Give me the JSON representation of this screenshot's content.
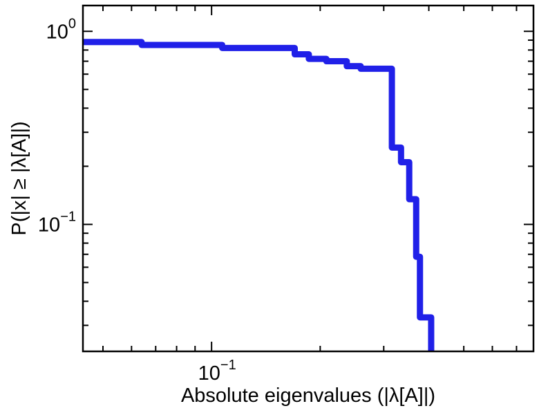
{
  "chart_data": {
    "type": "line",
    "subtype": "staircase-ccdf",
    "title": "",
    "xlabel": "Absolute eigenvalues (|λ[A]|)",
    "ylabel": "P(|x| ≥ |λ[A]|)",
    "xscale": "log",
    "yscale": "log",
    "xlim": [
      0.044,
      0.78
    ],
    "ylim": [
      0.022,
      1.36
    ],
    "grid": false,
    "legend": null,
    "xticks_major": [
      {
        "value": 0.1,
        "label_base": "10",
        "label_exp": "−1"
      }
    ],
    "yticks_major": [
      {
        "value": 1.0,
        "label_base": "10",
        "label_exp": "0"
      },
      {
        "value": 0.1,
        "label_base": "10",
        "label_exp": "−1"
      }
    ],
    "line_color": "#2020e8",
    "line_width": 9,
    "axis_color": "#000000",
    "background_color": "#ffffff",
    "steps": [
      [
        0.044,
        0.88
      ],
      [
        0.064,
        0.85
      ],
      [
        0.107,
        0.82
      ],
      [
        0.17,
        0.76
      ],
      [
        0.186,
        0.72
      ],
      [
        0.208,
        0.7
      ],
      [
        0.237,
        0.66
      ],
      [
        0.259,
        0.64
      ],
      [
        0.316,
        0.25
      ],
      [
        0.335,
        0.21
      ],
      [
        0.353,
        0.135
      ],
      [
        0.369,
        0.068
      ],
      [
        0.378,
        0.033
      ],
      [
        0.406,
        0.015
      ]
    ]
  }
}
